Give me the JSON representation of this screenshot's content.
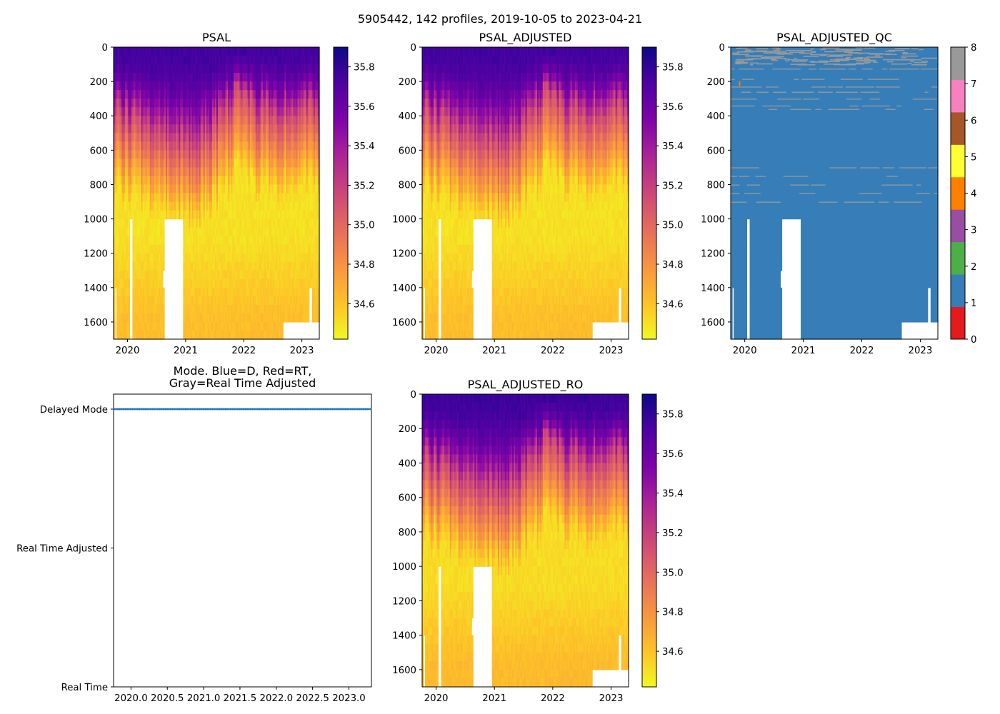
{
  "figure": {
    "suptitle": "5905442, 142 profiles, 2019-10-05 to 2023-04-21",
    "float_id": "5905442",
    "n_profiles": 142,
    "date_start": "2019-10-05",
    "date_end": "2023-04-21"
  },
  "chart_data": [
    {
      "id": "psal",
      "type": "heatmap",
      "title": "PSAL",
      "xlabel": "",
      "ylabel": "",
      "xlim": [
        2019.76,
        2023.3
      ],
      "ylim": [
        1700,
        0
      ],
      "x_ticks": [
        2020,
        2021,
        2022,
        2023
      ],
      "x_tick_labels": [
        "2020",
        "2021",
        "2022",
        "2023"
      ],
      "y_ticks": [
        0,
        200,
        400,
        600,
        800,
        1000,
        1200,
        1400,
        1600
      ],
      "y_tick_labels": [
        "0",
        "200",
        "400",
        "600",
        "800",
        "1000",
        "1200",
        "1400",
        "1600"
      ],
      "colormap": "plasma_r",
      "clim": [
        34.42,
        35.9
      ],
      "colorbar_ticks": [
        34.6,
        34.8,
        35.0,
        35.2,
        35.4,
        35.6,
        35.8
      ],
      "colorbar_tick_labels": [
        "34.6",
        "34.8",
        "35.0",
        "35.2",
        "35.4",
        "35.6",
        "35.8"
      ],
      "description": "Salinity highest (~35.6-35.8) in upper 0-400 dbar, decreasing to ~34.5 below 900 dbar; slightly higher (~34.6) near bottom 1400-1700",
      "missing_data_regions": [
        {
          "x": [
            2019.79,
            2019.81
          ],
          "depth": [
            1400,
            1700
          ]
        },
        {
          "x": [
            2020.03,
            2020.09
          ],
          "depth": [
            1000,
            1700
          ]
        },
        {
          "x": [
            2020.62,
            2020.64
          ],
          "depth": [
            1300,
            1400
          ]
        },
        {
          "x": [
            2020.64,
            2020.95
          ],
          "depth": [
            1000,
            1700
          ]
        },
        {
          "x": [
            2022.67,
            2023.12
          ],
          "depth": [
            1600,
            1700
          ]
        },
        {
          "x": [
            2023.12,
            2023.18
          ],
          "depth": [
            1400,
            1700
          ]
        },
        {
          "x": [
            2023.18,
            2023.29
          ],
          "depth": [
            1600,
            1700
          ]
        }
      ]
    },
    {
      "id": "psal_adjusted",
      "type": "heatmap",
      "title": "PSAL_ADJUSTED",
      "xlim": [
        2019.76,
        2023.3
      ],
      "ylim": [
        1700,
        0
      ],
      "x_ticks": [
        2020,
        2021,
        2022,
        2023
      ],
      "x_tick_labels": [
        "2020",
        "2021",
        "2022",
        "2023"
      ],
      "y_ticks": [
        0,
        200,
        400,
        600,
        800,
        1000,
        1200,
        1400,
        1600
      ],
      "y_tick_labels": [
        "0",
        "200",
        "400",
        "600",
        "800",
        "1000",
        "1200",
        "1400",
        "1600"
      ],
      "colormap": "plasma_r",
      "clim": [
        34.42,
        35.9
      ],
      "colorbar_ticks": [
        34.6,
        34.8,
        35.0,
        35.2,
        35.4,
        35.6,
        35.8
      ],
      "colorbar_tick_labels": [
        "34.6",
        "34.8",
        "35.0",
        "35.2",
        "35.4",
        "35.6",
        "35.8"
      ],
      "description": "Nearly identical to PSAL"
    },
    {
      "id": "psal_adjusted_qc",
      "type": "heatmap",
      "title": "PSAL_ADJUSTED_QC",
      "xlim": [
        2019.76,
        2023.3
      ],
      "ylim": [
        1700,
        0
      ],
      "x_ticks": [
        2020,
        2021,
        2022,
        2023
      ],
      "x_tick_labels": [
        "2020",
        "2021",
        "2022",
        "2023"
      ],
      "y_ticks": [
        0,
        200,
        400,
        600,
        800,
        1000,
        1200,
        1400,
        1600
      ],
      "y_tick_labels": [
        "0",
        "200",
        "400",
        "600",
        "800",
        "1000",
        "1200",
        "1400",
        "1600"
      ],
      "colormap": "Set1 (discrete 0-8)",
      "clim": [
        0,
        8
      ],
      "colorbar_ticks": [
        0,
        1,
        2,
        3,
        4,
        5,
        6,
        7,
        8
      ],
      "colorbar_tick_labels": [
        "0",
        "1",
        "2",
        "3",
        "4",
        "5",
        "6",
        "7",
        "8"
      ],
      "colorbar_colors": [
        "#e41a1c",
        "#377eb8",
        "#4daf4a",
        "#984ea3",
        "#ff7f00",
        "#ffff33",
        "#a65628",
        "#f781bf",
        "#999999"
      ],
      "description": "Mostly QC=1 (blue); scattered QC=8 (gray) horizontal streaks 0-370 dbar and 700-900 dbar; one QC=4 (orange) cell near 200 dbar in late 2019",
      "qc4_point": {
        "x": 2019.9,
        "depth": 200
      }
    },
    {
      "id": "mode",
      "type": "scatter",
      "title": "Mode. Blue=D, Red=RT,\nGray=Real Time Adjusted",
      "title_lines": [
        "Mode. Blue=D, Red=RT,",
        "Gray=Real Time Adjusted"
      ],
      "xlim": [
        2019.76,
        2023.31
      ],
      "ylim": [
        0,
        2
      ],
      "x_ticks": [
        2020.0,
        2020.5,
        2021.0,
        2021.5,
        2022.0,
        2022.5,
        2023.0
      ],
      "x_tick_labels": [
        "2020.0",
        "2020.5",
        "2021.0",
        "2021.5",
        "2022.0",
        "2022.5",
        "2023.0"
      ],
      "y_ticks": [
        0,
        1,
        2
      ],
      "y_tick_labels": [
        "Real Time",
        "Real Time Adjusted",
        "Delayed Mode"
      ],
      "series": [
        {
          "name": "Delayed Mode",
          "color": "#1f77b4",
          "y": 2,
          "count": 142,
          "x_range": [
            2019.76,
            2023.3
          ]
        }
      ]
    },
    {
      "id": "psal_adjusted_ro",
      "type": "heatmap",
      "title": "PSAL_ADJUSTED_RO",
      "xlim": [
        2019.76,
        2023.3
      ],
      "ylim": [
        1700,
        0
      ],
      "x_ticks": [
        2020,
        2021,
        2022,
        2023
      ],
      "x_tick_labels": [
        "2020",
        "2021",
        "2022",
        "2023"
      ],
      "y_ticks": [
        0,
        200,
        400,
        600,
        800,
        1000,
        1200,
        1400,
        1600
      ],
      "y_tick_labels": [
        "0",
        "200",
        "400",
        "600",
        "800",
        "1000",
        "1200",
        "1400",
        "1600"
      ],
      "colormap": "plasma_r",
      "clim": [
        34.42,
        35.9
      ],
      "colorbar_ticks": [
        34.6,
        34.8,
        35.0,
        35.2,
        35.4,
        35.6,
        35.8
      ],
      "colorbar_tick_labels": [
        "34.6",
        "34.8",
        "35.0",
        "35.2",
        "35.4",
        "35.6",
        "35.8"
      ],
      "description": "Nearly identical to PSAL_ADJUSTED"
    }
  ]
}
